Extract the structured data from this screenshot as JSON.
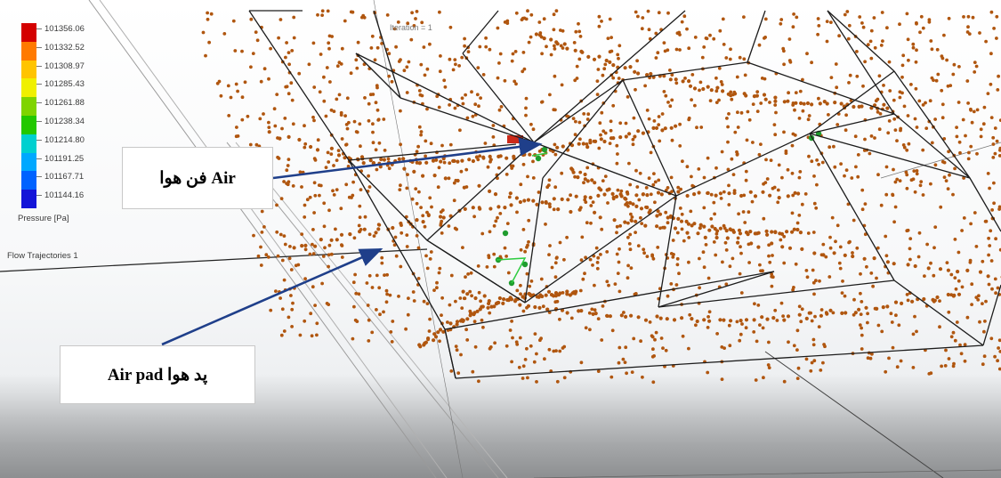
{
  "legend": {
    "values": [
      "101356.06",
      "101332.52",
      "101308.97",
      "101285.43",
      "101261.88",
      "101238.34",
      "101214.80",
      "101191.25",
      "101167.71",
      "101144.16"
    ],
    "colors": [
      "#d40000",
      "#ff7a00",
      "#ffc400",
      "#f0f000",
      "#7fd400",
      "#22c800",
      "#00d0d0",
      "#00a8ff",
      "#0062ff",
      "#1414d8"
    ],
    "title": "Pressure [Pa]"
  },
  "trajectories_label": "Flow Trajectories 1",
  "iteration_label": "Iteration = 1",
  "callouts": {
    "air_fan": "فن هوا Air",
    "air_pad": "Air pad پد هوا"
  },
  "colors": {
    "particle": "#b0560f",
    "arrow": "#1f3f8a",
    "mesh": "#1c1c1c"
  }
}
